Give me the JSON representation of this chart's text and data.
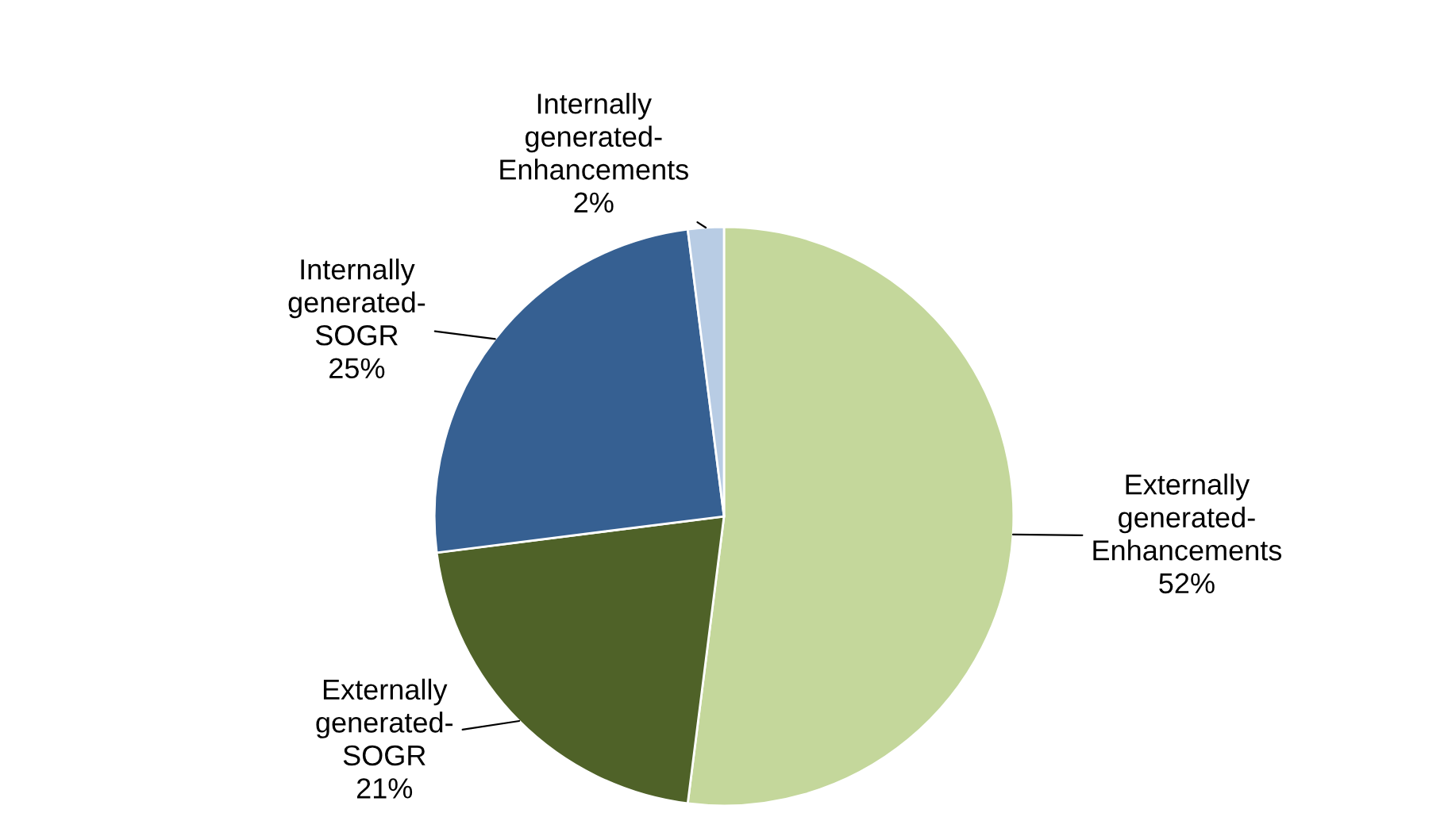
{
  "chart_data": {
    "type": "pie",
    "categories": [
      "Externally generated-Enhancements",
      "Externally generated-SOGR",
      "Internally generated-SOGR",
      "Internally generated-Enhancements"
    ],
    "values": [
      52,
      21,
      25,
      2
    ],
    "colors": [
      "#c4d79b",
      "#4f6228",
      "#366092",
      "#b8cce4"
    ],
    "value_labels": [
      "52%",
      "21%",
      "25%",
      "2%"
    ]
  }
}
